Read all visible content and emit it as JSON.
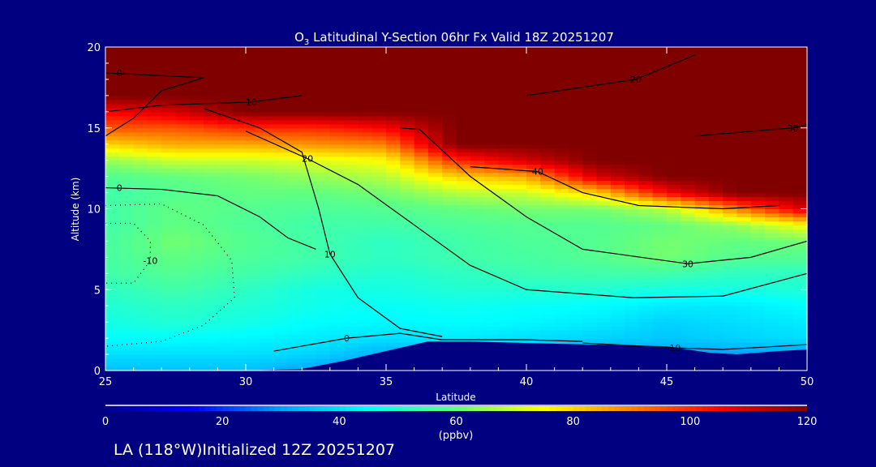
{
  "chart_data": {
    "type": "heatmap",
    "title": "O",
    "title_sub": "3",
    "title_rest": " Latitudinal Y-Section 06hr  Fx Valid 18Z 20251207",
    "xlabel": "Latitude",
    "ylabel": "Altitude (km)",
    "xlim": [
      25,
      50
    ],
    "ylim": [
      0,
      20
    ],
    "xticks": [
      "25",
      "30",
      "35",
      "40",
      "45",
      "50"
    ],
    "yticks": [
      "0",
      "5",
      "10",
      "15",
      "20"
    ],
    "x": [
      25,
      27.5,
      30,
      32.5,
      35,
      37.5,
      40,
      42.5,
      45,
      47.5,
      50
    ],
    "y": [
      0,
      1,
      2,
      3,
      4,
      5,
      6,
      7,
      8,
      9,
      10,
      11,
      12,
      13,
      14,
      15,
      16,
      17,
      18,
      19,
      20
    ],
    "values": [
      [
        35,
        35,
        35,
        30,
        25,
        0,
        0,
        0,
        0,
        0,
        0
      ],
      [
        40,
        40,
        40,
        38,
        32,
        30,
        30,
        30,
        30,
        30,
        30
      ],
      [
        45,
        45,
        44,
        42,
        40,
        42,
        40,
        38,
        36,
        38,
        40
      ],
      [
        48,
        50,
        48,
        45,
        44,
        45,
        44,
        42,
        38,
        40,
        42
      ],
      [
        50,
        52,
        50,
        47,
        46,
        47,
        46,
        45,
        42,
        42,
        45
      ],
      [
        52,
        55,
        52,
        48,
        48,
        50,
        50,
        50,
        48,
        48,
        50
      ],
      [
        55,
        58,
        55,
        52,
        50,
        52,
        54,
        55,
        55,
        52,
        52
      ],
      [
        56,
        60,
        57,
        55,
        52,
        55,
        56,
        58,
        62,
        58,
        58
      ],
      [
        56,
        62,
        58,
        55,
        52,
        55,
        57,
        58,
        62,
        60,
        62
      ],
      [
        55,
        60,
        57,
        55,
        55,
        57,
        58,
        58,
        60,
        65,
        75
      ],
      [
        55,
        60,
        58,
        57,
        58,
        60,
        62,
        62,
        68,
        90,
        110
      ],
      [
        55,
        58,
        60,
        60,
        62,
        68,
        70,
        80,
        105,
        120,
        120
      ],
      [
        58,
        60,
        62,
        65,
        68,
        80,
        85,
        110,
        120,
        120,
        120
      ],
      [
        65,
        70,
        70,
        72,
        75,
        100,
        110,
        120,
        120,
        120,
        120
      ],
      [
        80,
        85,
        85,
        88,
        90,
        120,
        120,
        120,
        120,
        120,
        120
      ],
      [
        95,
        95,
        100,
        100,
        105,
        120,
        120,
        120,
        120,
        120,
        120
      ],
      [
        105,
        110,
        120,
        120,
        120,
        120,
        120,
        120,
        120,
        120,
        120
      ],
      [
        120,
        120,
        120,
        120,
        120,
        120,
        120,
        120,
        120,
        120,
        120
      ],
      [
        120,
        120,
        120,
        120,
        120,
        120,
        120,
        120,
        120,
        120,
        120
      ],
      [
        120,
        120,
        120,
        120,
        120,
        120,
        120,
        120,
        120,
        120,
        120
      ],
      [
        120,
        120,
        120,
        120,
        120,
        120,
        120,
        120,
        120,
        120,
        120
      ]
    ],
    "terrain_km": [
      [
        25,
        0
      ],
      [
        30,
        0
      ],
      [
        32,
        0.1
      ],
      [
        33.5,
        0.6
      ],
      [
        35,
        1.2
      ],
      [
        36.5,
        1.8
      ],
      [
        38,
        1.8
      ],
      [
        40,
        1.7
      ],
      [
        42.5,
        1.6
      ],
      [
        45,
        1.5
      ],
      [
        46.5,
        1.1
      ],
      [
        47.5,
        1.0
      ],
      [
        49,
        1.2
      ],
      [
        50,
        1.3
      ]
    ],
    "contours": [
      {
        "label": "0",
        "dotted": false,
        "label_at": [
          33.6,
          2.0
        ],
        "points": [
          [
            31,
            1.2
          ],
          [
            33.6,
            2.0
          ],
          [
            35.5,
            2.3
          ],
          [
            37,
            1.9
          ],
          [
            40,
            1.9
          ],
          [
            42,
            1.8
          ]
        ]
      },
      {
        "label": "10",
        "dotted": false,
        "label_at": [
          33.0,
          7.2
        ],
        "points": [
          [
            28.5,
            16.2
          ],
          [
            30.5,
            15
          ],
          [
            32,
            13.5
          ],
          [
            32.6,
            10
          ],
          [
            33,
            7.2
          ],
          [
            34,
            4.5
          ],
          [
            35.5,
            2.6
          ],
          [
            37,
            2.1
          ]
        ]
      },
      {
        "label": "20",
        "dotted": false,
        "label_at": [
          32.2,
          13.1
        ],
        "points": [
          [
            30,
            14.8
          ],
          [
            32.2,
            13.1
          ],
          [
            34,
            11.5
          ],
          [
            36,
            9
          ],
          [
            38,
            6.5
          ],
          [
            40,
            5
          ],
          [
            43.8,
            4.5
          ],
          [
            47,
            4.6
          ],
          [
            50,
            6
          ]
        ]
      },
      {
        "label": "20",
        "dotted": false,
        "label_at": [
          43.9,
          18
        ],
        "points": [
          [
            40,
            17
          ],
          [
            43.9,
            18
          ],
          [
            46,
            19.5
          ]
        ]
      },
      {
        "label": "30",
        "dotted": false,
        "label_at": [
          45.75,
          6.6
        ],
        "points": [
          [
            35.5,
            15
          ],
          [
            36.2,
            14.9
          ],
          [
            38,
            12
          ],
          [
            40,
            9.5
          ],
          [
            42,
            7.5
          ],
          [
            45.75,
            6.6
          ],
          [
            48,
            7
          ],
          [
            50,
            8
          ]
        ]
      },
      {
        "label": "30",
        "dotted": false,
        "label_at": [
          49.5,
          15
        ],
        "points": [
          [
            46,
            14.5
          ],
          [
            49.5,
            15
          ],
          [
            50,
            15.2
          ]
        ]
      },
      {
        "label": "40",
        "dotted": false,
        "label_at": [
          40.4,
          12.3
        ],
        "points": [
          [
            38,
            12.6
          ],
          [
            40.4,
            12.3
          ],
          [
            42,
            11
          ],
          [
            44,
            10.2
          ],
          [
            47,
            10
          ],
          [
            49,
            10.2
          ]
        ]
      },
      {
        "label": "10",
        "dotted": false,
        "label_at": [
          30.2,
          16.6
        ],
        "points": [
          [
            25,
            16
          ],
          [
            27,
            16.4
          ],
          [
            30.2,
            16.6
          ],
          [
            32,
            17
          ]
        ]
      },
      {
        "label": "10",
        "dotted": false,
        "label_at": [
          45.3,
          1.4
        ],
        "points": [
          [
            42,
            1.7
          ],
          [
            45.3,
            1.4
          ],
          [
            47,
            1.3
          ],
          [
            50,
            1.6
          ]
        ]
      },
      {
        "label": "0",
        "dotted": false,
        "label_at": [
          25.5,
          18.4
        ],
        "points": [
          [
            25,
            18.4
          ],
          [
            28.5,
            18.1
          ],
          [
            27,
            17.3
          ],
          [
            26,
            15.6
          ],
          [
            25,
            14.5
          ]
        ]
      },
      {
        "label": "0",
        "dotted": false,
        "label_at": [
          25.5,
          11.3
        ],
        "points": [
          [
            25,
            11.3
          ],
          [
            27,
            11.2
          ],
          [
            29,
            10.8
          ],
          [
            30.5,
            9.5
          ],
          [
            31.5,
            8.2
          ],
          [
            32.5,
            7.5
          ]
        ]
      },
      {
        "label": "-10",
        "dotted": true,
        "label_at": [
          26.6,
          6.8
        ],
        "points": [
          [
            25,
            9.1
          ],
          [
            26,
            9.1
          ],
          [
            26.6,
            8
          ],
          [
            26.6,
            6.8
          ],
          [
            26,
            5.4
          ],
          [
            25,
            5.4
          ]
        ]
      },
      {
        "label": "",
        "dotted": true,
        "label_at": null,
        "points": [
          [
            25,
            10.2
          ],
          [
            27,
            10.3
          ],
          [
            28.5,
            9
          ],
          [
            29.5,
            6.8
          ],
          [
            29.6,
            4.5
          ],
          [
            28.5,
            2.8
          ],
          [
            27,
            1.8
          ],
          [
            25,
            1.5
          ]
        ]
      }
    ],
    "colorbar": {
      "ticks": [
        "0",
        "20",
        "40",
        "60",
        "80",
        "100",
        "120"
      ],
      "unit": "(ppbv)",
      "range": [
        0,
        120
      ],
      "colors": [
        "#000090",
        "#0000ff",
        "#00a0ff",
        "#00ffff",
        "#60ff80",
        "#ffff00",
        "#ff8000",
        "#ff0000",
        "#800000"
      ]
    }
  },
  "footer": "LA (118°W)Initialized 12Z 20251207"
}
